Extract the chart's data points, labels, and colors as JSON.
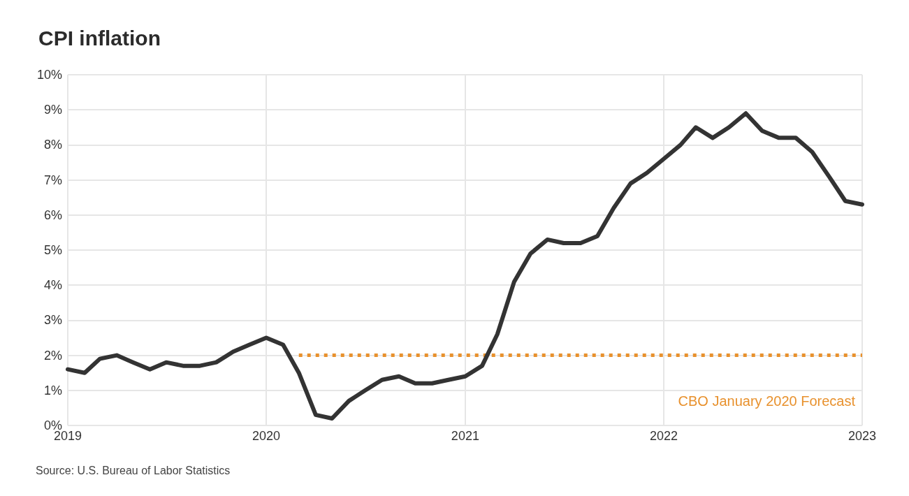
{
  "chart_data": {
    "type": "line",
    "title": "CPI inflation",
    "x": [
      "2019-01",
      "2019-02",
      "2019-03",
      "2019-04",
      "2019-05",
      "2019-06",
      "2019-07",
      "2019-08",
      "2019-09",
      "2019-10",
      "2019-11",
      "2019-12",
      "2020-01",
      "2020-02",
      "2020-03",
      "2020-04",
      "2020-05",
      "2020-06",
      "2020-07",
      "2020-08",
      "2020-09",
      "2020-10",
      "2020-11",
      "2020-12",
      "2021-01",
      "2021-02",
      "2021-03",
      "2021-04",
      "2021-05",
      "2021-06",
      "2021-07",
      "2021-08",
      "2021-09",
      "2021-10",
      "2021-11",
      "2021-12",
      "2022-01",
      "2022-02",
      "2022-03",
      "2022-04",
      "2022-05",
      "2022-06",
      "2022-07",
      "2022-08",
      "2022-09",
      "2022-10",
      "2022-11",
      "2022-12",
      "2023-01"
    ],
    "series": [
      {
        "color": "#333333",
        "values": [
          1.6,
          1.5,
          1.9,
          2.0,
          1.8,
          1.6,
          1.8,
          1.7,
          1.7,
          1.8,
          2.1,
          2.3,
          2.5,
          2.3,
          1.5,
          0.3,
          0.2,
          0.7,
          1.0,
          1.3,
          1.4,
          1.2,
          1.2,
          1.3,
          1.4,
          1.7,
          2.6,
          4.1,
          4.9,
          5.3,
          5.2,
          5.2,
          5.4,
          6.2,
          6.9,
          7.2,
          7.6,
          8.0,
          8.5,
          8.2,
          8.5,
          8.9,
          8.4,
          8.2,
          8.2,
          7.8,
          7.1,
          6.4,
          6.3
        ]
      },
      {
        "name": "CBO January 2020 Forecast",
        "color": "#e8912d",
        "line_style": "dotted",
        "x": [
          "2020-03",
          "2023-01"
        ],
        "values": [
          2,
          2
        ]
      }
    ],
    "xlim": [
      "2019-01",
      "2023-01"
    ],
    "xticks": [
      {
        "value": "2019-01",
        "label": "2019"
      },
      {
        "value": "2020-01",
        "label": "2020"
      },
      {
        "value": "2021-01",
        "label": "2021"
      },
      {
        "value": "2022-01",
        "label": "2022"
      },
      {
        "value": "2023-01",
        "label": "2023"
      }
    ],
    "ylim": [
      0,
      10
    ],
    "yticks": [
      {
        "value": 0,
        "label": "0%"
      },
      {
        "value": 1,
        "label": "1%"
      },
      {
        "value": 2,
        "label": "2%"
      },
      {
        "value": 3,
        "label": "3%"
      },
      {
        "value": 4,
        "label": "4%"
      },
      {
        "value": 5,
        "label": "5%"
      },
      {
        "value": 6,
        "label": "6%"
      },
      {
        "value": 7,
        "label": "7%"
      },
      {
        "value": 8,
        "label": "8%"
      },
      {
        "value": 9,
        "label": "9%"
      },
      {
        "value": 10,
        "label": "10%"
      }
    ],
    "grid": true,
    "legend": false,
    "marker": "none",
    "line_style": "solid",
    "annotations": [
      "Source: U.S. Bureau of Labor Statistics"
    ]
  }
}
